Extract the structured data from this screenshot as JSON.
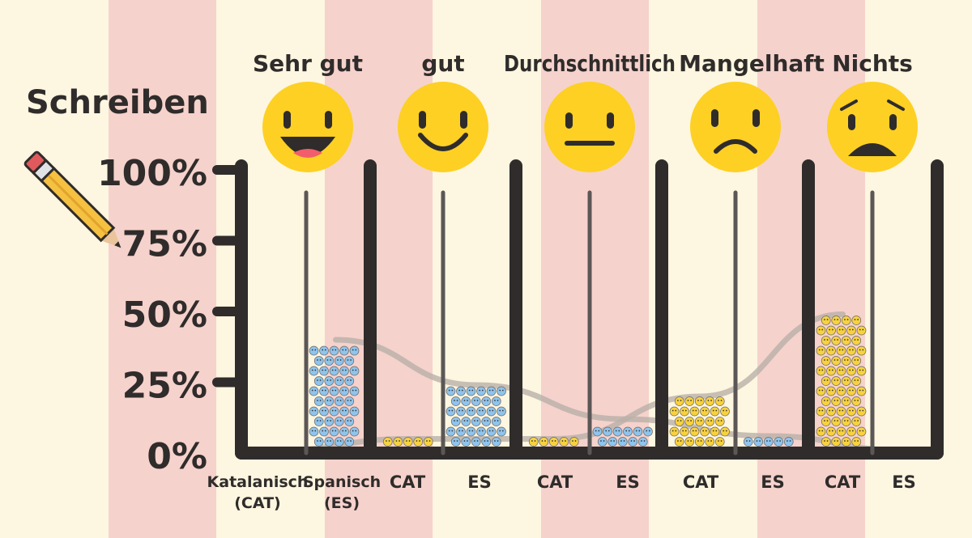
{
  "title": "Schreiben",
  "colors": {
    "background": "#fdf6e0",
    "stripe": "#f6d2cc",
    "frame": "#2f2c2b",
    "cat": "#f8d23e",
    "es": "#8fc4ec",
    "smiley": "#fdd023",
    "trend": "#b9b0a9"
  },
  "icons": [
    "pencil-icon",
    "very-happy-face-icon",
    "happy-face-icon",
    "neutral-face-icon",
    "sad-face-icon",
    "worried-face-icon"
  ],
  "chart_data": {
    "type": "bar",
    "title": "Schreiben",
    "ylim": [
      0,
      100
    ],
    "yticks": [
      "100%",
      "75%",
      "50%",
      "25%",
      "0%"
    ],
    "categories": [
      "Sehr gut",
      "gut",
      "Durchschnittlich",
      "Mangelhaft",
      "Nichts"
    ],
    "x_labels": [
      [
        "Katalanisch",
        "(CAT)",
        "Spanisch",
        "(ES)"
      ],
      [
        "CAT",
        "ES"
      ],
      [
        "CAT",
        "ES"
      ],
      [
        "CAT",
        "ES"
      ],
      [
        "CAT",
        "ES"
      ]
    ],
    "series": [
      {
        "name": "Katalanisch (CAT)",
        "values": [
          1,
          5,
          5,
          20,
          49
        ]
      },
      {
        "name": "Spanisch (ES)",
        "values": [
          40,
          24,
          12,
          6,
          1
        ]
      }
    ]
  }
}
